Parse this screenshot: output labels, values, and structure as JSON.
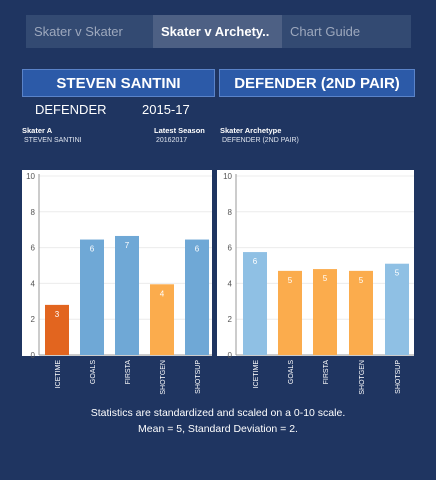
{
  "tabs": [
    {
      "label": "Skater v Skater"
    },
    {
      "label": "Skater v Archety.."
    },
    {
      "label": "Chart Guide"
    }
  ],
  "header": {
    "left_title": "STEVEN SANTINI",
    "right_title": "DEFENDER (2ND PAIR)",
    "position": "DEFENDER",
    "season": "2015-17"
  },
  "fields": {
    "skater_label": "Skater A",
    "skater_value": "STEVEN SANTINI",
    "season_label": "Latest Season",
    "season_value": "20162017",
    "archetype_label": "Skater Archetype",
    "archetype_value": "DEFENDER (2ND PAIR)"
  },
  "footer": {
    "line1": "Statistics are standardized and scaled on a 0-10 scale.",
    "line2": "Mean = 5, Standard Deviation = 2."
  },
  "colors": {
    "background": "#1f3561",
    "blue_bar": "#6fa8d6",
    "light_blue_bar": "#8fc0e4",
    "orange_bar": "#fbac4d",
    "dark_orange_bar": "#e2651f"
  },
  "chart_data": [
    {
      "type": "bar",
      "categories": [
        "ICETIME",
        "GOALS",
        "FIRSTA",
        "SHOTGEN",
        "SHOTSUP"
      ],
      "values": [
        2.8,
        6.45,
        6.65,
        3.95,
        6.45
      ],
      "labels": [
        "3",
        "6",
        "7",
        "4",
        "6"
      ],
      "colors": [
        "#e2651f",
        "#6fa8d6",
        "#6fa8d6",
        "#fbac4d",
        "#6fa8d6"
      ],
      "yticks": [
        0,
        2,
        4,
        6,
        8,
        10
      ],
      "ylim": [
        0,
        10
      ],
      "grid": true
    },
    {
      "type": "bar",
      "categories": [
        "ICETIME",
        "GOALS",
        "FIRSTA",
        "SHOTGEN",
        "SHOTSUP"
      ],
      "values": [
        5.75,
        4.7,
        4.8,
        4.7,
        5.1
      ],
      "labels": [
        "6",
        "5",
        "5",
        "5",
        "5"
      ],
      "colors": [
        "#8fc0e4",
        "#fbac4d",
        "#fbac4d",
        "#fbac4d",
        "#8fc0e4"
      ],
      "yticks": [
        0,
        2,
        4,
        6,
        8,
        10
      ],
      "ylim": [
        0,
        10
      ],
      "grid": true
    }
  ]
}
